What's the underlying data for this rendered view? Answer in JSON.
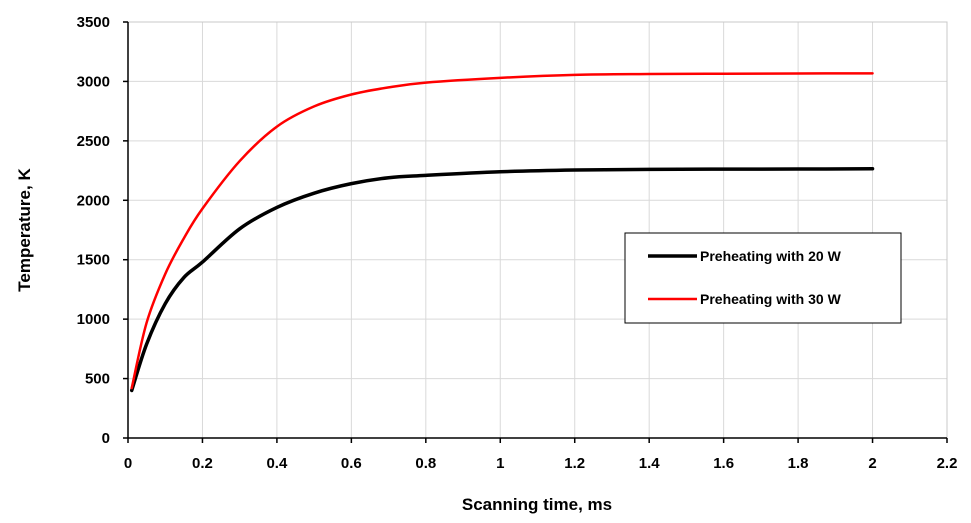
{
  "chart_data": {
    "type": "line",
    "xlabel": "Scanning time, ms",
    "ylabel": "Temperature, K",
    "xlim": [
      0,
      2.2
    ],
    "ylim": [
      0,
      3500
    ],
    "xticks": [
      0,
      0.2,
      0.4,
      0.6,
      0.8,
      1,
      1.2,
      1.4,
      1.6,
      1.8,
      2,
      2.2
    ],
    "yticks": [
      0,
      500,
      1000,
      1500,
      2000,
      2500,
      3000,
      3500
    ],
    "grid": true,
    "legend_position": "right",
    "series": [
      {
        "name": "Preheating with 20 W",
        "color": "#000000",
        "x": [
          0.01,
          0.05,
          0.1,
          0.15,
          0.2,
          0.3,
          0.4,
          0.5,
          0.6,
          0.7,
          0.8,
          1.0,
          1.2,
          1.4,
          1.6,
          1.8,
          2.0
        ],
        "y": [
          400,
          790,
          1130,
          1350,
          1480,
          1760,
          1940,
          2060,
          2140,
          2190,
          2210,
          2240,
          2255,
          2260,
          2262,
          2263,
          2265
        ]
      },
      {
        "name": "Preheating with 30 W",
        "color": "#ff0000",
        "x": [
          0.01,
          0.05,
          0.1,
          0.15,
          0.2,
          0.3,
          0.4,
          0.5,
          0.6,
          0.7,
          0.8,
          1.0,
          1.2,
          1.4,
          1.6,
          1.8,
          2.0
        ],
        "y": [
          420,
          970,
          1380,
          1680,
          1930,
          2330,
          2620,
          2790,
          2890,
          2950,
          2990,
          3030,
          3055,
          3062,
          3065,
          3067,
          3068
        ]
      }
    ]
  }
}
